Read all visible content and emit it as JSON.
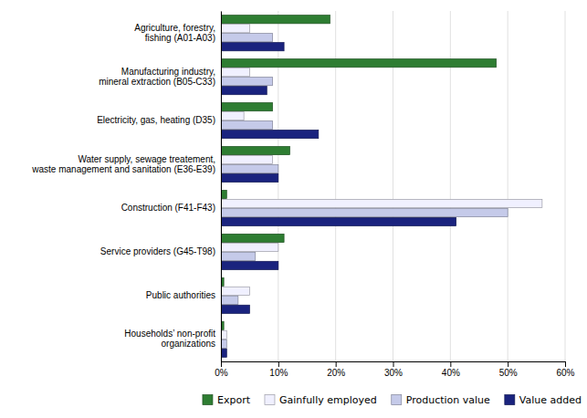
{
  "chart_data": {
    "type": "bar",
    "orientation": "horizontal",
    "categories": [
      "Agriculture, forestry,\nfishing (A01-A03)",
      "Manufacturing industry,\nmineral extraction (B05-C33)",
      "Electricity, gas, heating (D35)",
      "Water supply, sewage treatement,\nwaste management and sanitation (E36-E39)",
      "Construction (F41-F43)",
      "Service providers (G45-T98)",
      "Public authorities",
      "Households’ non-profit\norganizations"
    ],
    "series": [
      {
        "name": "Export",
        "color": "#2e7d32",
        "values": [
          19,
          48,
          9,
          12,
          1,
          11,
          0.5,
          0.5
        ]
      },
      {
        "name": "Gainfully employed",
        "color": "#f0f0ff",
        "values": [
          5,
          5,
          4,
          9,
          56,
          10,
          5,
          1
        ]
      },
      {
        "name": "Production value",
        "color": "#c5cae9",
        "values": [
          9,
          9,
          9,
          10,
          50,
          6,
          3,
          1
        ]
      },
      {
        "name": "Value added",
        "color": "#1a237e",
        "values": [
          11,
          8,
          17,
          10,
          41,
          10,
          5,
          1
        ]
      }
    ],
    "xlim": [
      0,
      60
    ],
    "xticks": [
      {
        "value": 0,
        "label": "0%"
      },
      {
        "value": 10,
        "label": "10%"
      },
      {
        "value": 20,
        "label": "20%"
      },
      {
        "value": 30,
        "label": "30%"
      },
      {
        "value": 40,
        "label": "40%"
      },
      {
        "value": 50,
        "label": "50%"
      },
      {
        "value": 60,
        "label": "60%"
      }
    ],
    "grid": true,
    "legend": "bottom"
  }
}
